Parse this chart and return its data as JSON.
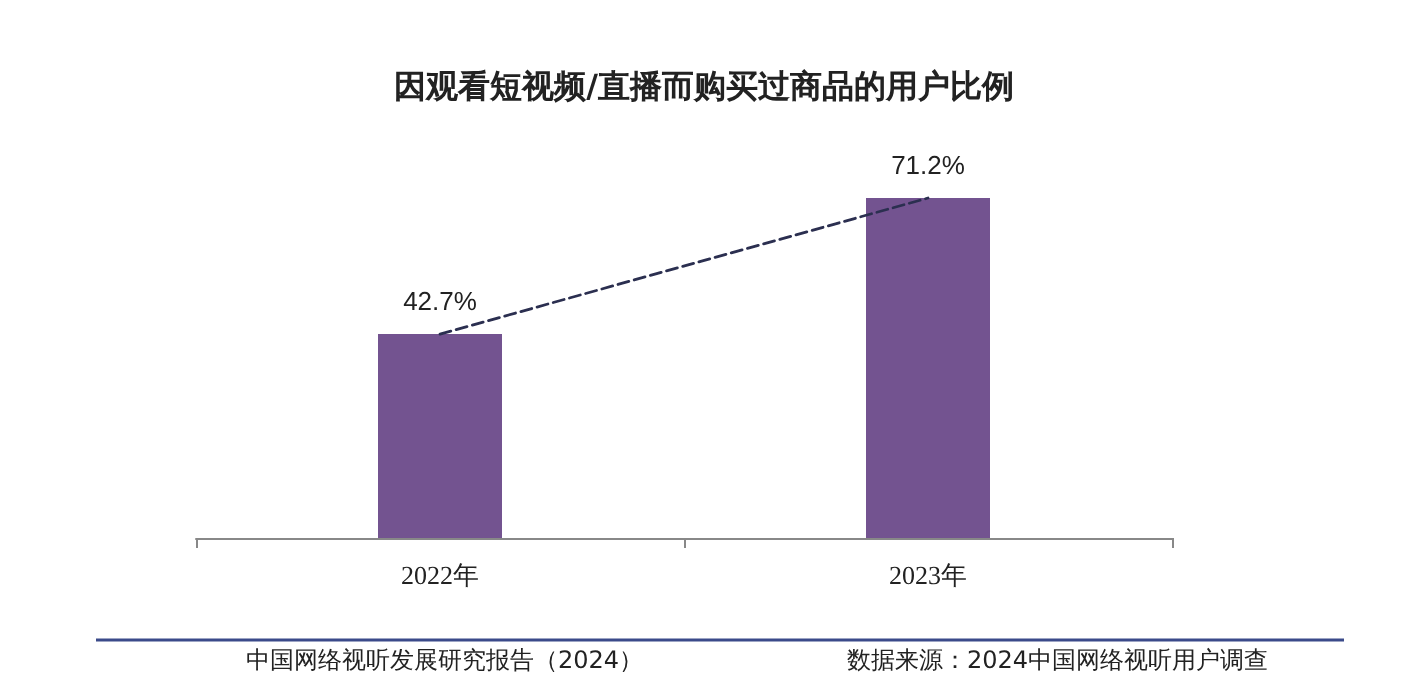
{
  "chart_data": {
    "type": "bar",
    "title": "因观看短视频/直播而购买过商品的用户比例",
    "categories": [
      "2022年",
      "2023年"
    ],
    "series": [
      {
        "color": "#735390",
        "values": [
          42.7,
          71.2
        ],
        "value_labels": [
          "42.7%",
          "71.2%"
        ]
      },
      {
        "type": "line",
        "color": "#2b2f50",
        "values": [
          42.7,
          71.2
        ],
        "line_style": "dashed",
        "marker": "none"
      }
    ],
    "annotations": [
      "中国网络视听发展研究报告（2024）",
      "数据来源：2024中国网络视听用户调查"
    ],
    "grid": false
  }
}
